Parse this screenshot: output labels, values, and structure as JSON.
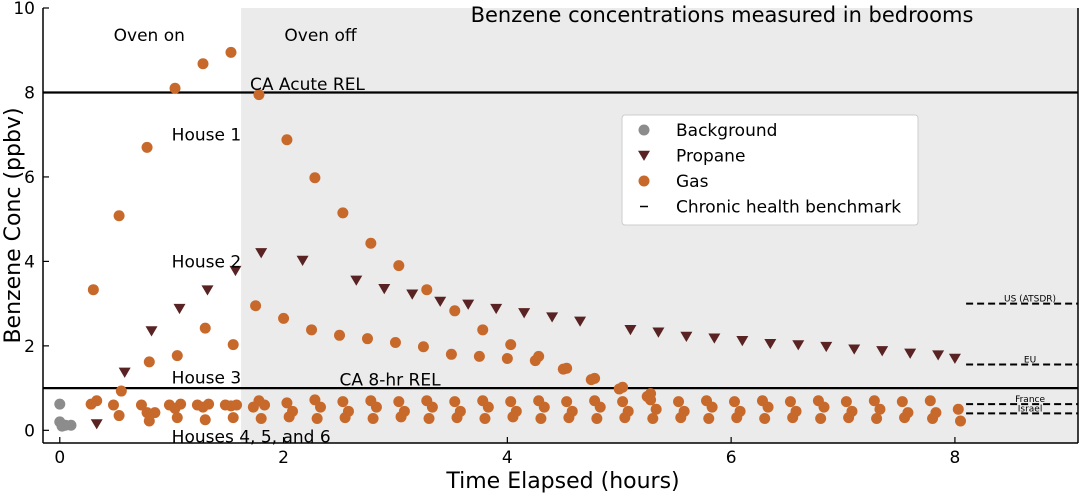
{
  "chart_data": {
    "type": "scatter",
    "title": "Benzene concentrations measured in bedrooms",
    "xlabel": "Time Elapsed (hours)",
    "ylabel": "Benzene Conc (ppbv)",
    "xlim": [
      -0.15,
      9.1
    ],
    "ylim": [
      -0.3,
      10
    ],
    "xticks": [
      0,
      2,
      4,
      6,
      8
    ],
    "yticks": [
      0,
      2,
      4,
      6,
      8,
      10
    ],
    "shaded_region": {
      "x_start": 1.62,
      "x_end": 9.1,
      "color": "#ebebeb"
    },
    "region_labels": {
      "oven_on": "Oven on",
      "oven_off": "Oven off"
    },
    "reference_lines": [
      {
        "name": "CA Acute REL",
        "y": 8,
        "label_x": 1.7,
        "label_y": 8.2
      },
      {
        "name": "CA 8-hr REL",
        "y": 1,
        "label_x": 2.5,
        "label_y": 1.2
      }
    ],
    "house_labels": [
      {
        "text": "House 1",
        "x": 1.0,
        "y": 7.0
      },
      {
        "text": "House 2",
        "x": 1.0,
        "y": 4.0
      },
      {
        "text": "House 3",
        "x": 1.0,
        "y": 1.25
      },
      {
        "text": "Houses 4, 5, and 6",
        "x": 1.0,
        "y": -0.15
      }
    ],
    "benchmarks": [
      {
        "name": "US (ATSDR)",
        "y": 3.0
      },
      {
        "name": "EU",
        "y": 1.56
      },
      {
        "name": "France",
        "y": 0.62
      },
      {
        "name": "Israel",
        "y": 0.4
      }
    ],
    "benchmark_x_range": [
      8.1,
      9.1
    ],
    "legend": {
      "position": "center-right",
      "entries": [
        {
          "label": "Background",
          "marker": "circle",
          "color": "#8c8c8c"
        },
        {
          "label": "Propane",
          "marker": "triangle-down",
          "color": "#5a2323"
        },
        {
          "label": "Gas",
          "marker": "circle",
          "color": "#c8692c"
        },
        {
          "label": "Chronic health benchmark",
          "marker": "dash",
          "color": "#000000"
        }
      ]
    },
    "series": [
      {
        "name": "Background",
        "color": "#8c8c8c",
        "marker": "circle",
        "points": [
          [
            0.0,
            0.62
          ],
          [
            0.0,
            0.2
          ],
          [
            0.05,
            0.12
          ],
          [
            0.1,
            0.12
          ],
          [
            0.02,
            0.1
          ]
        ]
      },
      {
        "name": "Propane",
        "color": "#5a2323",
        "marker": "triangle-down",
        "points": [
          [
            0.33,
            0.15
          ],
          [
            0.58,
            1.37
          ],
          [
            0.82,
            2.35
          ],
          [
            1.07,
            2.88
          ],
          [
            1.32,
            3.32
          ],
          [
            1.57,
            3.78
          ],
          [
            1.8,
            4.2
          ],
          [
            2.17,
            4.02
          ],
          [
            2.65,
            3.55
          ],
          [
            2.9,
            3.35
          ],
          [
            3.15,
            3.22
          ],
          [
            3.4,
            3.05
          ],
          [
            3.65,
            2.98
          ],
          [
            3.9,
            2.88
          ],
          [
            4.15,
            2.78
          ],
          [
            4.4,
            2.68
          ],
          [
            4.65,
            2.58
          ],
          [
            5.1,
            2.38
          ],
          [
            5.35,
            2.32
          ],
          [
            5.6,
            2.22
          ],
          [
            5.85,
            2.18
          ],
          [
            6.1,
            2.12
          ],
          [
            6.35,
            2.05
          ],
          [
            6.6,
            2.02
          ],
          [
            6.85,
            1.98
          ],
          [
            7.1,
            1.92
          ],
          [
            7.35,
            1.88
          ],
          [
            7.6,
            1.82
          ],
          [
            7.85,
            1.78
          ],
          [
            8.0,
            1.7
          ]
        ]
      },
      {
        "name": "Gas - House 1",
        "color": "#c8692c",
        "marker": "circle",
        "points": [
          [
            0.3,
            3.33
          ],
          [
            0.53,
            5.08
          ],
          [
            0.78,
            6.7
          ],
          [
            1.03,
            8.1
          ],
          [
            1.28,
            8.68
          ],
          [
            1.53,
            8.95
          ],
          [
            1.78,
            7.95
          ],
          [
            2.03,
            6.88
          ],
          [
            2.28,
            5.98
          ],
          [
            2.53,
            5.15
          ],
          [
            2.78,
            4.43
          ],
          [
            3.03,
            3.9
          ],
          [
            3.28,
            3.33
          ],
          [
            3.53,
            2.83
          ],
          [
            3.78,
            2.38
          ],
          [
            4.03,
            2.03
          ],
          [
            4.28,
            1.75
          ],
          [
            4.53,
            1.47
          ],
          [
            4.78,
            1.23
          ],
          [
            5.03,
            1.02
          ],
          [
            5.28,
            0.87
          ]
        ]
      },
      {
        "name": "Gas - House 2",
        "color": "#c8692c",
        "marker": "circle",
        "points": [
          [
            0.55,
            0.93
          ],
          [
            0.8,
            1.62
          ],
          [
            1.05,
            1.77
          ],
          [
            1.3,
            2.42
          ],
          [
            1.55,
            2.03
          ],
          [
            1.75,
            2.95
          ],
          [
            2.0,
            2.65
          ],
          [
            2.25,
            2.38
          ],
          [
            2.5,
            2.25
          ],
          [
            2.75,
            2.17
          ],
          [
            3.0,
            2.08
          ],
          [
            3.25,
            1.98
          ],
          [
            3.5,
            1.8
          ],
          [
            3.75,
            1.75
          ],
          [
            4.0,
            1.7
          ],
          [
            4.25,
            1.65
          ],
          [
            4.5,
            1.45
          ],
          [
            4.75,
            1.2
          ],
          [
            5.0,
            0.98
          ],
          [
            5.25,
            0.8
          ]
        ]
      },
      {
        "name": "Gas - Houses 3-6",
        "color": "#c8692c",
        "marker": "circle",
        "points": [
          [
            0.28,
            0.62
          ],
          [
            0.33,
            0.7
          ],
          [
            0.48,
            0.6
          ],
          [
            0.53,
            0.35
          ],
          [
            0.73,
            0.6
          ],
          [
            0.78,
            0.42
          ],
          [
            0.85,
            0.42
          ],
          [
            0.98,
            0.6
          ],
          [
            1.03,
            0.52
          ],
          [
            1.08,
            0.62
          ],
          [
            1.23,
            0.6
          ],
          [
            1.28,
            0.55
          ],
          [
            1.33,
            0.62
          ],
          [
            1.48,
            0.6
          ],
          [
            1.53,
            0.58
          ],
          [
            1.58,
            0.6
          ],
          [
            1.78,
            0.7
          ],
          [
            1.83,
            0.6
          ],
          [
            1.73,
            0.55
          ],
          [
            2.03,
            0.65
          ],
          [
            2.08,
            0.45
          ],
          [
            2.28,
            0.72
          ],
          [
            2.33,
            0.55
          ],
          [
            2.53,
            0.68
          ],
          [
            2.58,
            0.45
          ],
          [
            2.78,
            0.7
          ],
          [
            2.83,
            0.55
          ],
          [
            3.03,
            0.68
          ],
          [
            3.08,
            0.45
          ],
          [
            3.28,
            0.7
          ],
          [
            3.33,
            0.55
          ],
          [
            3.53,
            0.68
          ],
          [
            3.58,
            0.45
          ],
          [
            3.78,
            0.7
          ],
          [
            3.83,
            0.55
          ],
          [
            4.03,
            0.68
          ],
          [
            4.08,
            0.45
          ],
          [
            4.28,
            0.7
          ],
          [
            4.33,
            0.55
          ],
          [
            4.53,
            0.68
          ],
          [
            4.58,
            0.45
          ],
          [
            4.78,
            0.7
          ],
          [
            4.83,
            0.55
          ],
          [
            5.03,
            0.68
          ],
          [
            5.08,
            0.45
          ],
          [
            5.28,
            0.72
          ],
          [
            5.33,
            0.5
          ],
          [
            5.53,
            0.68
          ],
          [
            5.58,
            0.45
          ],
          [
            5.78,
            0.7
          ],
          [
            5.83,
            0.55
          ],
          [
            6.03,
            0.68
          ],
          [
            6.08,
            0.45
          ],
          [
            6.28,
            0.7
          ],
          [
            6.33,
            0.55
          ],
          [
            6.53,
            0.68
          ],
          [
            6.58,
            0.45
          ],
          [
            6.78,
            0.7
          ],
          [
            6.83,
            0.55
          ],
          [
            7.03,
            0.68
          ],
          [
            7.08,
            0.45
          ],
          [
            7.28,
            0.7
          ],
          [
            7.33,
            0.5
          ],
          [
            7.53,
            0.68
          ],
          [
            7.58,
            0.42
          ],
          [
            7.78,
            0.7
          ],
          [
            7.83,
            0.42
          ],
          [
            8.03,
            0.5
          ],
          [
            8.05,
            0.22
          ],
          [
            0.8,
            0.22
          ],
          [
            1.05,
            0.3
          ],
          [
            1.3,
            0.25
          ],
          [
            1.55,
            0.3
          ],
          [
            1.8,
            0.28
          ],
          [
            2.05,
            0.32
          ],
          [
            2.3,
            0.28
          ],
          [
            2.55,
            0.3
          ],
          [
            2.8,
            0.28
          ],
          [
            3.05,
            0.32
          ],
          [
            3.3,
            0.28
          ],
          [
            3.55,
            0.3
          ],
          [
            3.8,
            0.28
          ],
          [
            4.05,
            0.32
          ],
          [
            4.3,
            0.28
          ],
          [
            4.55,
            0.3
          ],
          [
            4.8,
            0.28
          ],
          [
            5.05,
            0.3
          ],
          [
            5.3,
            0.28
          ],
          [
            5.55,
            0.3
          ],
          [
            5.8,
            0.28
          ],
          [
            6.05,
            0.3
          ],
          [
            6.3,
            0.28
          ],
          [
            6.55,
            0.3
          ],
          [
            6.8,
            0.28
          ],
          [
            7.05,
            0.3
          ],
          [
            7.3,
            0.28
          ],
          [
            7.55,
            0.3
          ],
          [
            7.8,
            0.28
          ]
        ]
      }
    ]
  }
}
